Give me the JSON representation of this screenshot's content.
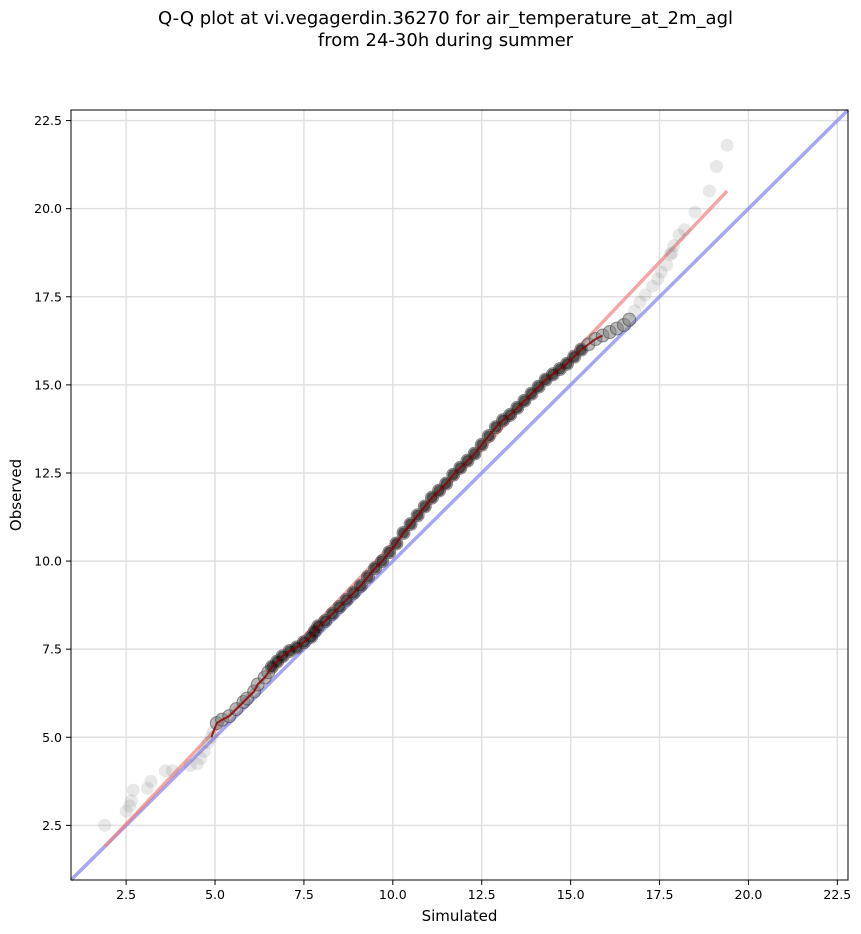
{
  "chart_data": {
    "type": "scatter",
    "title_line1": "Q-Q plot at vi.vegagerdin.36270 for air_temperature_at_2m_agl",
    "title_line2": "from 24-30h during summer",
    "xlabel": "Simulated",
    "ylabel": "Observed",
    "xlim": [
      0.95,
      22.8
    ],
    "ylim": [
      0.95,
      22.8
    ],
    "xticks": [
      "2.5",
      "5.0",
      "7.5",
      "10.0",
      "12.5",
      "15.0",
      "17.5",
      "20.0",
      "22.5"
    ],
    "yticks": [
      "2.5",
      "5.0",
      "7.5",
      "10.0",
      "12.5",
      "15.0",
      "17.5",
      "20.0",
      "22.5"
    ],
    "grid": true,
    "colors": {
      "points": "#808080",
      "fit_line": "#f08080",
      "identity_line": "#8080f0",
      "central_line": "#8b0000"
    },
    "identity_line": {
      "from": [
        0.95,
        0.95
      ],
      "to": [
        22.8,
        22.8
      ]
    },
    "fit_line": {
      "from": [
        1.9,
        1.9
      ],
      "to": [
        19.4,
        20.5
      ]
    },
    "points": [
      [
        1.9,
        2.5
      ],
      [
        2.5,
        2.9
      ],
      [
        2.6,
        3.05
      ],
      [
        2.65,
        3.2
      ],
      [
        2.7,
        3.5
      ],
      [
        3.1,
        3.55
      ],
      [
        3.2,
        3.75
      ],
      [
        3.6,
        4.05
      ],
      [
        3.8,
        4.05
      ],
      [
        4.3,
        4.2
      ],
      [
        4.5,
        4.25
      ],
      [
        4.6,
        4.4
      ],
      [
        4.7,
        4.6
      ],
      [
        4.8,
        4.85
      ],
      [
        4.9,
        5.0
      ],
      [
        4.95,
        5.15
      ],
      [
        5.05,
        5.4
      ],
      [
        5.2,
        5.5
      ],
      [
        5.4,
        5.6
      ],
      [
        5.6,
        5.8
      ],
      [
        5.8,
        6.0
      ],
      [
        5.9,
        6.1
      ],
      [
        6.1,
        6.3
      ],
      [
        6.2,
        6.5
      ],
      [
        6.4,
        6.7
      ],
      [
        6.5,
        6.85
      ],
      [
        6.6,
        7.0
      ],
      [
        6.75,
        7.15
      ],
      [
        6.9,
        7.3
      ],
      [
        7.1,
        7.45
      ],
      [
        7.3,
        7.55
      ],
      [
        7.5,
        7.7
      ],
      [
        7.7,
        7.85
      ],
      [
        7.8,
        8.0
      ],
      [
        7.9,
        8.15
      ],
      [
        8.1,
        8.3
      ],
      [
        8.3,
        8.5
      ],
      [
        8.5,
        8.7
      ],
      [
        8.7,
        8.9
      ],
      [
        8.9,
        9.1
      ],
      [
        9.1,
        9.3
      ],
      [
        9.3,
        9.55
      ],
      [
        9.5,
        9.8
      ],
      [
        9.7,
        10.0
      ],
      [
        9.9,
        10.25
      ],
      [
        10.1,
        10.5
      ],
      [
        10.3,
        10.8
      ],
      [
        10.5,
        11.05
      ],
      [
        10.7,
        11.3
      ],
      [
        10.9,
        11.55
      ],
      [
        11.1,
        11.8
      ],
      [
        11.3,
        12.0
      ],
      [
        11.5,
        12.2
      ],
      [
        11.7,
        12.45
      ],
      [
        11.9,
        12.65
      ],
      [
        12.1,
        12.85
      ],
      [
        12.3,
        13.05
      ],
      [
        12.5,
        13.3
      ],
      [
        12.7,
        13.55
      ],
      [
        12.9,
        13.8
      ],
      [
        13.1,
        14.0
      ],
      [
        13.3,
        14.15
      ],
      [
        13.5,
        14.35
      ],
      [
        13.7,
        14.55
      ],
      [
        13.9,
        14.75
      ],
      [
        14.1,
        14.95
      ],
      [
        14.3,
        15.15
      ],
      [
        14.5,
        15.3
      ],
      [
        14.7,
        15.45
      ],
      [
        14.9,
        15.6
      ],
      [
        15.1,
        15.8
      ],
      [
        15.3,
        16.0
      ],
      [
        15.5,
        16.15
      ],
      [
        15.7,
        16.3
      ],
      [
        15.9,
        16.4
      ],
      [
        16.1,
        16.5
      ],
      [
        16.3,
        16.6
      ],
      [
        16.5,
        16.7
      ],
      [
        16.65,
        16.85
      ],
      [
        16.8,
        17.1
      ],
      [
        16.95,
        17.35
      ],
      [
        17.1,
        17.55
      ],
      [
        17.3,
        17.8
      ],
      [
        17.45,
        18.0
      ],
      [
        17.55,
        18.2
      ],
      [
        17.7,
        18.4
      ],
      [
        17.8,
        18.7
      ],
      [
        17.85,
        18.75
      ],
      [
        17.9,
        18.95
      ],
      [
        18.05,
        19.25
      ],
      [
        18.2,
        19.4
      ],
      [
        18.5,
        19.9
      ],
      [
        18.9,
        20.5
      ],
      [
        19.1,
        21.2
      ],
      [
        19.4,
        21.8
      ]
    ]
  }
}
